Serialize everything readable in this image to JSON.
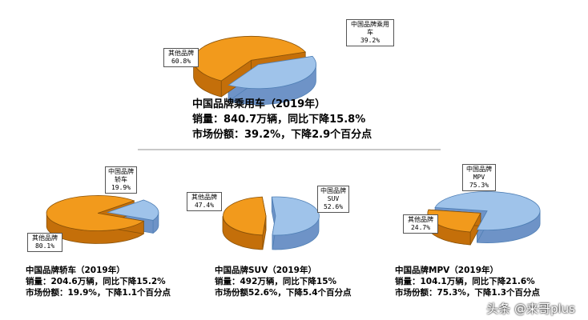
{
  "colors": {
    "china": "#9fc3ea",
    "china_edge": "#4f7fb5",
    "china_side": "#6e93c7",
    "other": "#f29a1c",
    "other_edge": "#8a5208",
    "other_side": "#c46f0a"
  },
  "headline": {
    "title": "中国品牌乘用车（2019年）",
    "sales": "销量：840.7万辆，同比下降15.8%",
    "share": "市场份额：39.2%，下降2.9个百分点"
  },
  "sedan": {
    "title": "中国品牌轿车（2019年）",
    "sales": "销量：204.6万辆，同比下降15.2%",
    "share": "市场份额：19.9%，下降1.1个百分点"
  },
  "suv": {
    "title": "中国品牌SUV（2019年）",
    "sales": "销量：492万辆，同比下降15%",
    "share": "市场份额52.6%，下降5.4个百分点"
  },
  "mpv": {
    "title": "中国品牌MPV（2019年）",
    "sales": "销量：104.1万辆，同比下降21.6%",
    "share": "市场份额：75.3%，下降1.3个百分点"
  },
  "watermark": "头条 @来哥plus",
  "chart_data": [
    {
      "type": "pie",
      "categories": [
        "中国品牌乘用车",
        "其他品牌"
      ],
      "values": [
        39.2,
        60.8
      ],
      "labels": [
        [
          "中国品牌乘用",
          "车",
          "39.2%"
        ],
        [
          "其他品牌",
          "60.8%"
        ]
      ]
    },
    {
      "type": "pie",
      "categories": [
        "中国品牌轿车",
        "其他品牌"
      ],
      "values": [
        19.9,
        80.1
      ],
      "labels": [
        [
          "中国品牌",
          "轿车",
          "19.9%"
        ],
        [
          "其他品牌",
          "80.1%"
        ]
      ]
    },
    {
      "type": "pie",
      "categories": [
        "中国品牌SUV",
        "其他品牌"
      ],
      "values": [
        52.6,
        47.4
      ],
      "labels": [
        [
          "中国品牌",
          "SUV",
          "52.6%"
        ],
        [
          "其他品牌",
          "47.4%"
        ]
      ]
    },
    {
      "type": "pie",
      "categories": [
        "中国品牌MPV",
        "其他品牌"
      ],
      "values": [
        75.3,
        24.7
      ],
      "labels": [
        [
          "中国品牌",
          "MPV",
          "75.3%"
        ],
        [
          "其他品牌",
          "24.7%"
        ]
      ]
    }
  ]
}
